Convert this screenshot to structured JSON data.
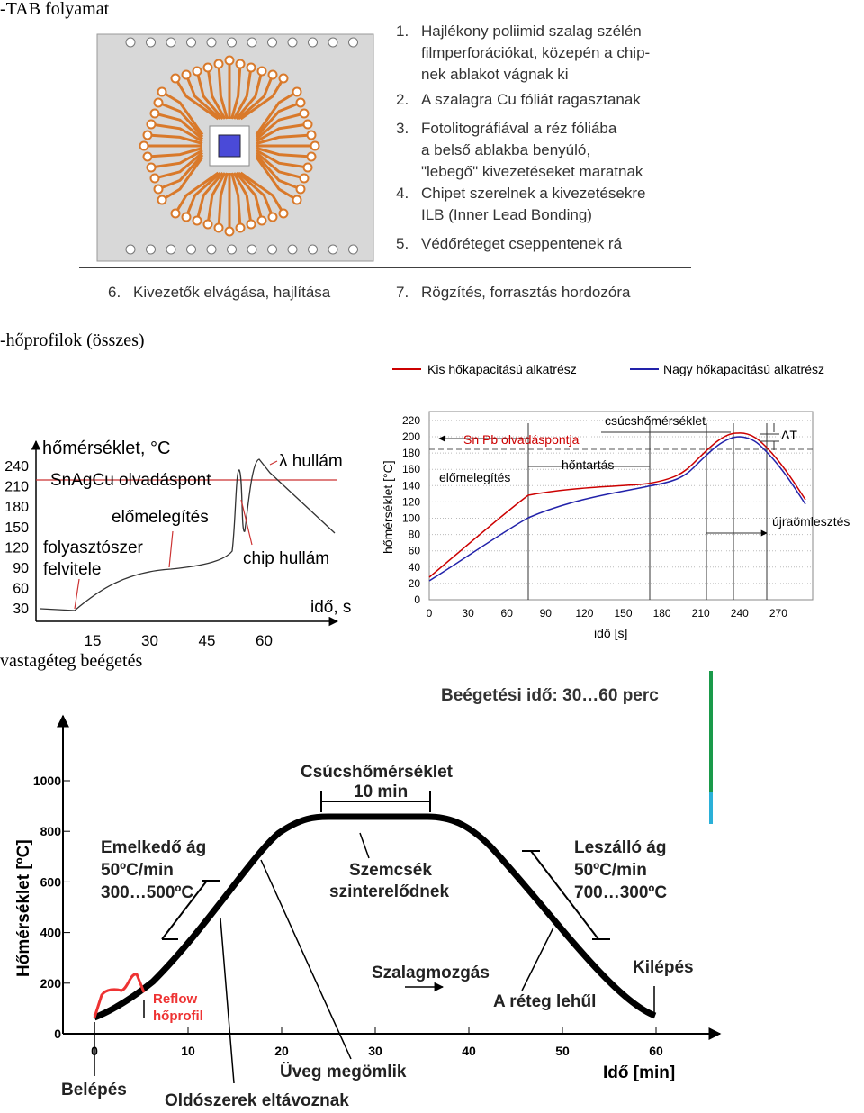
{
  "tab": {
    "heading": "-TAB folyamat",
    "steps": [
      [
        "1.",
        "Hajlékony poliimid szalag szélén",
        "filmperforációkat, közepén a chip-",
        "nek ablakot vágnak ki"
      ],
      [
        "2.",
        "A szalagra Cu fóliát ragasztanak"
      ],
      [
        "3.",
        "Fotolitográfiával a réz fóliába",
        "a belső ablakba benyúló,",
        "\"lebegő\" kivezetéseket maratnak"
      ],
      [
        "4.",
        "Chipet szerelnek a kivezetésekre",
        "ILB (Inner Lead Bonding)"
      ],
      [
        "5.",
        "Védőréteget cseppentenek rá"
      ],
      [
        "6.",
        "Kivezetők elvágása, hajlítása"
      ],
      [
        "7.",
        "Rögzítés, forrasztás hordozóra"
      ]
    ]
  },
  "profiles": {
    "heading": "-hőprofilok (összes)",
    "wave": {
      "y_label": "hőmérséklet, °C",
      "x_label": "idő, s",
      "yticks": [
        240,
        210,
        180,
        150,
        120,
        90,
        60,
        30
      ],
      "xticks": [
        15,
        30,
        45,
        60
      ],
      "melt": "SnAgCu olvadáspont",
      "wave": "λ hullám",
      "preheat": "előmelegítés",
      "flux": [
        "folyasztószer",
        "felvitele"
      ],
      "chip": "chip hullám"
    },
    "reflow": {
      "legend": [
        "Kis hőkapacitású alkatrész",
        "Nagy hőkapacitású alkatrész"
      ],
      "y_label": "hőmérséklet [°C]",
      "x_label": "idő [s]",
      "yticks": [
        0,
        20,
        40,
        60,
        80,
        100,
        120,
        140,
        160,
        180,
        200,
        220
      ],
      "xticks": [
        0,
        30,
        60,
        90,
        120,
        150,
        180,
        210,
        240,
        270
      ],
      "peak": "csúcshőmérséklet",
      "melt": "Sn Pb  olvadáspontja",
      "delta": "ΔT",
      "soak": "hőntartás",
      "preheat": "előmelegítés",
      "reflow": "újraömlesztés"
    }
  },
  "firing": {
    "heading": "vastagéteg beégetés",
    "title": "Beégetési idő: 30…60 perc",
    "y_label": "Hőmérséklet [ºC]",
    "x_label": "Idő [min]",
    "yticks": [
      0,
      200,
      400,
      600,
      800,
      1000
    ],
    "xticks": [
      0,
      10,
      20,
      30,
      40,
      50,
      60
    ],
    "peak": [
      "Csúcshőmérséklet",
      "10 min"
    ],
    "rise": [
      "Emelkedő ág",
      "50ºC/min",
      "300…500ºC"
    ],
    "fall": [
      "Leszálló ág",
      "50ºC/min",
      "700…300ºC"
    ],
    "grains": [
      "Szemcsék",
      "szinterelődnek"
    ],
    "reflow": [
      "Reflow",
      "hőprofil"
    ],
    "belt": "Szalagmozgás",
    "cool": "A réteg lehűl",
    "exit": "Kilépés",
    "entry": "Belépés",
    "glass": "Üveg megömlik",
    "solvent": "Oldószerek eltávoznak"
  }
}
